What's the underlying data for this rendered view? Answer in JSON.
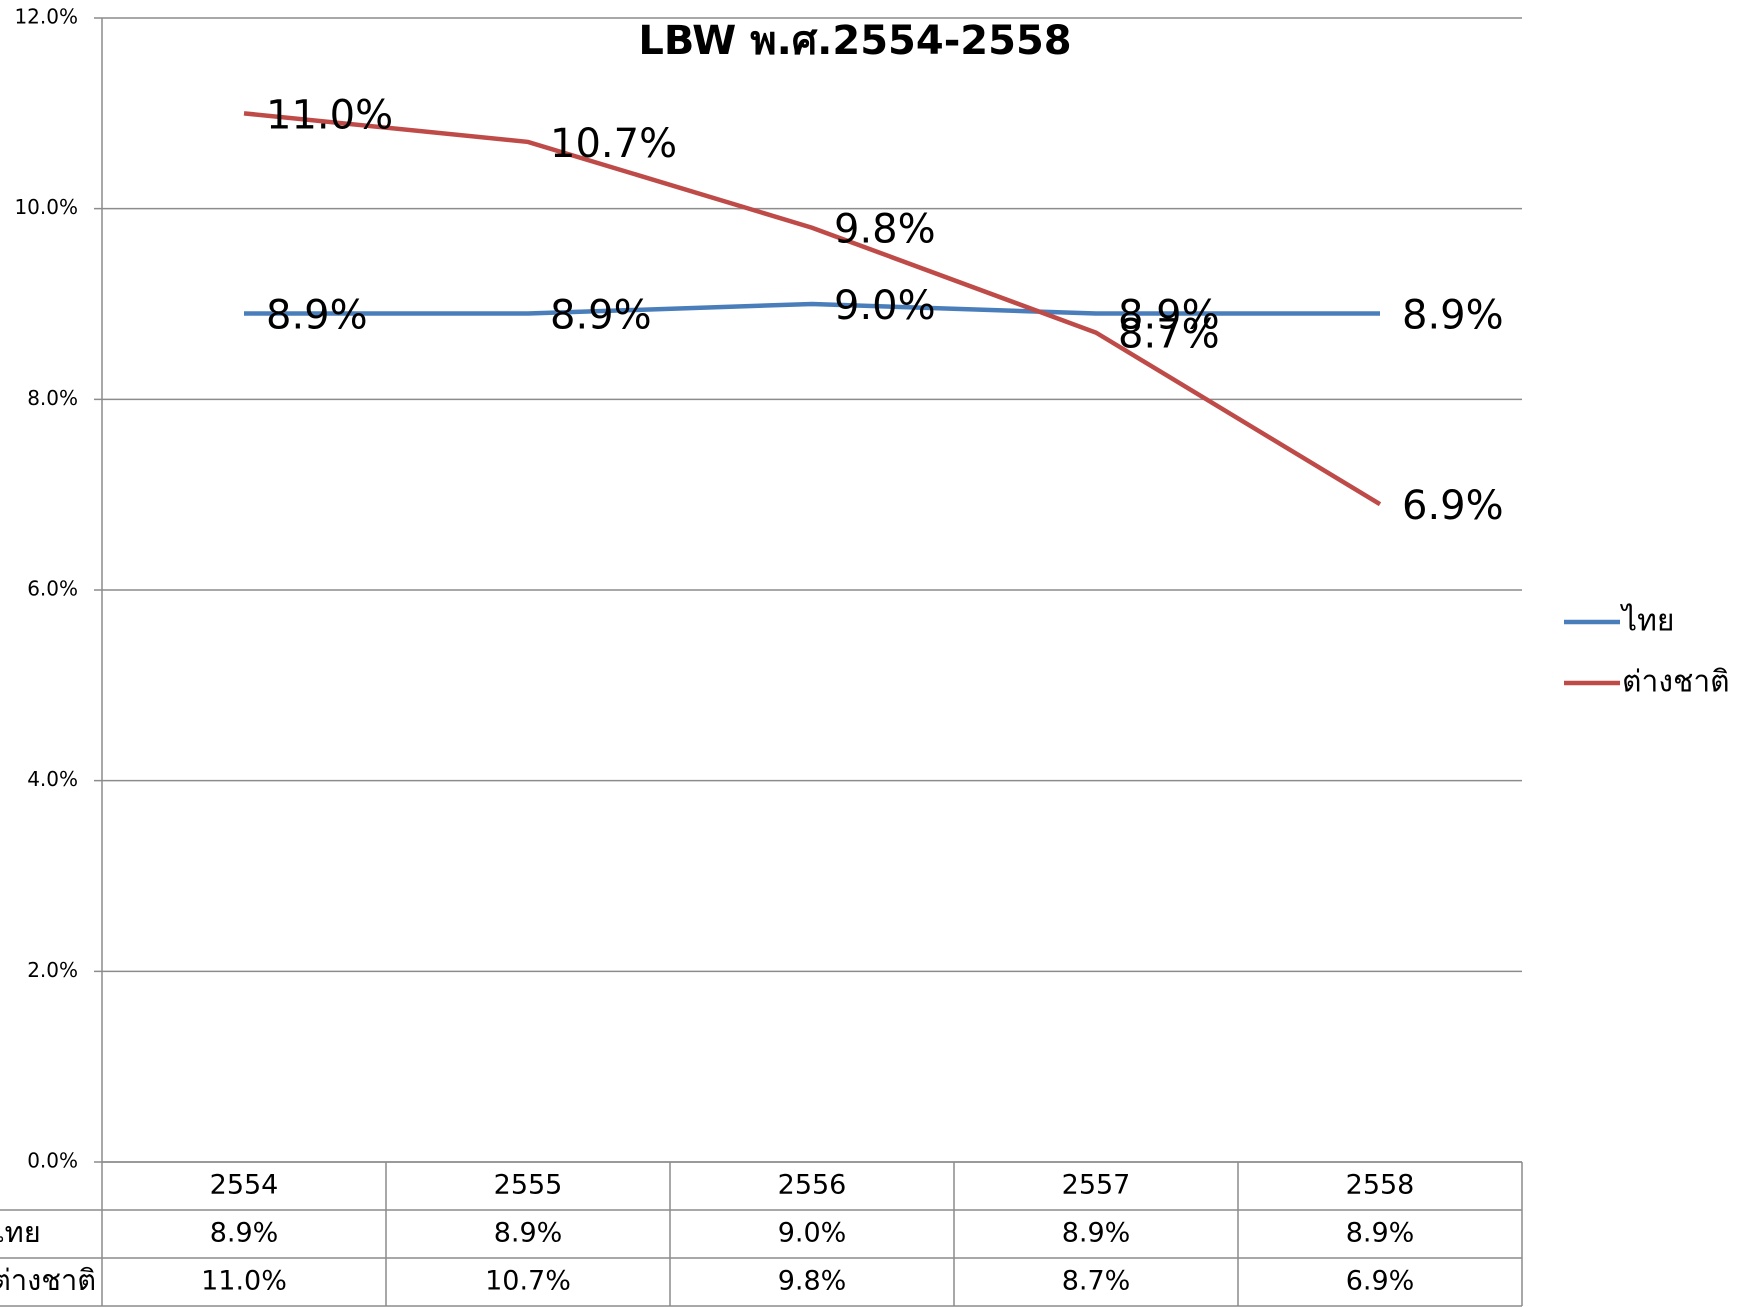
{
  "chart_data": {
    "type": "line",
    "title": "LBW  พ.ศ.2554-2558",
    "categories": [
      "2554",
      "2555",
      "2556",
      "2557",
      "2558"
    ],
    "series": [
      {
        "name": "ไทย",
        "color": "#4a7ebb",
        "values": [
          8.9,
          8.9,
          9.0,
          8.9,
          8.9
        ],
        "value_labels": [
          "8.9%",
          "8.9%",
          "9.0%",
          "8.9%",
          "8.9%"
        ]
      },
      {
        "name": "ต่างชาติ",
        "color": "#be4b48",
        "values": [
          11.0,
          10.7,
          9.8,
          8.7,
          6.9
        ],
        "value_labels": [
          "11.0%",
          "10.7%",
          "9.8%",
          "8.7%",
          "6.9%"
        ]
      }
    ],
    "ylim": [
      0,
      12
    ],
    "yticks": [
      {
        "value": 0,
        "label": "0.0%"
      },
      {
        "value": 2,
        "label": "2.0%"
      },
      {
        "value": 4,
        "label": "4.0%"
      },
      {
        "value": 6,
        "label": "6.0%"
      },
      {
        "value": 8,
        "label": "8.0%"
      },
      {
        "value": 10,
        "label": "10.0%"
      },
      {
        "value": 12,
        "label": "12.0%"
      }
    ],
    "grid": true,
    "legend": "right",
    "data_table": true
  }
}
